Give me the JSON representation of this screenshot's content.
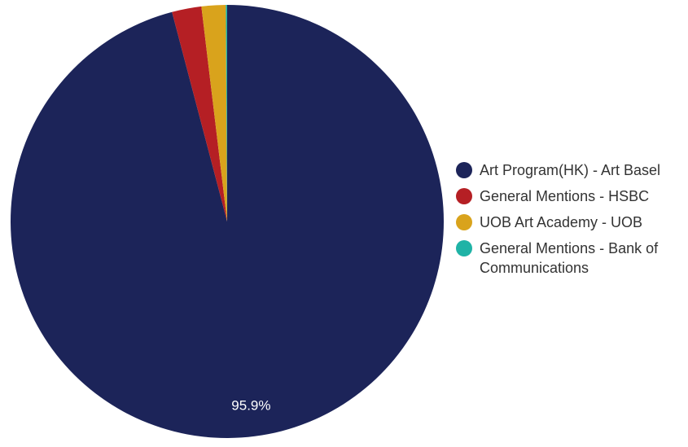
{
  "chart_data": {
    "type": "pie",
    "slices": [
      {
        "label": "Art Program(HK) - Art Basel",
        "value": 95.9,
        "color": "#1c2459",
        "value_label": "95.9%"
      },
      {
        "label": "General Mentions - HSBC",
        "value": 2.2,
        "color": "#b51f24",
        "value_label": ""
      },
      {
        "label": "UOB Art Academy - UOB",
        "value": 1.8,
        "color": "#d9a31c",
        "value_label": ""
      },
      {
        "label": "General Mentions - Bank of Communications",
        "value": 0.1,
        "color": "#1fb3a6",
        "value_label": ""
      }
    ],
    "legend_position": "right"
  }
}
